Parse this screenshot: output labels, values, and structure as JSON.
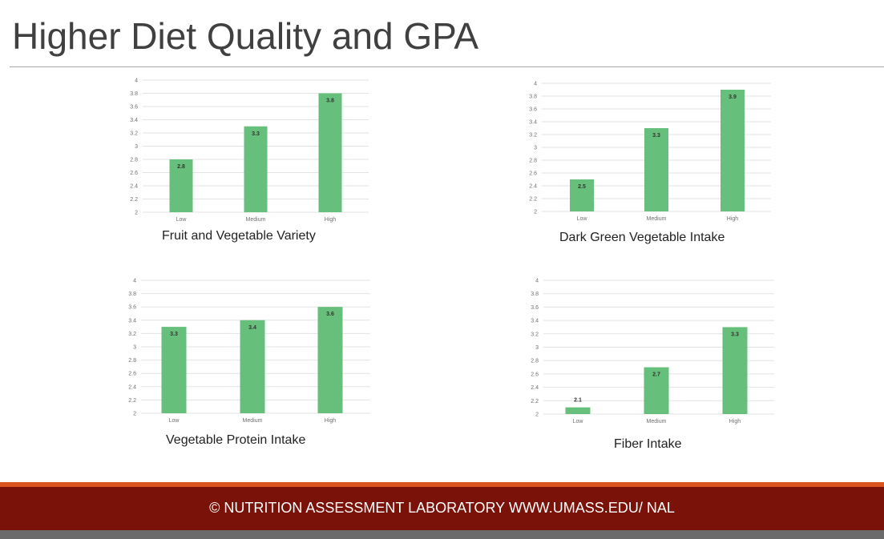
{
  "slide": {
    "title": "Higher Diet Quality and GPA",
    "footer": "© NUTRITION ASSESSMENT LABORATORY WWW.UMASS.EDU/ NAL"
  },
  "colors": {
    "bar": "#66bf7a",
    "grid": "#e3e3e3",
    "footer_band": "#7a1209",
    "footer_accent": "#d9541e"
  },
  "chart_data": [
    {
      "type": "bar",
      "title": "Fruit and Vegetable Variety",
      "categories": [
        "Low",
        "Medium",
        "High"
      ],
      "values": [
        2.8,
        3.3,
        3.8
      ],
      "value_labels": [
        "2.8",
        "3.3",
        "3.8"
      ],
      "yticks": [
        "2",
        "2.2",
        "2.4",
        "2.6",
        "2.8",
        "3",
        "3.2",
        "3.4",
        "3.6",
        "3.8",
        "4"
      ],
      "ylim": [
        2,
        4
      ],
      "grid": true
    },
    {
      "type": "bar",
      "title": "Dark Green Vegetable Intake",
      "categories": [
        "Low",
        "Medium",
        "High"
      ],
      "values": [
        2.5,
        3.3,
        3.9
      ],
      "value_labels": [
        "2.5",
        "3.3",
        "3.9"
      ],
      "yticks": [
        "2",
        "2.2",
        "2.4",
        "2.6",
        "2.8",
        "3",
        "3.2",
        "3.4",
        "3.6",
        "3.8",
        "4"
      ],
      "ylim": [
        2,
        4
      ],
      "grid": true
    },
    {
      "type": "bar",
      "title": "Vegetable Protein Intake",
      "categories": [
        "Low",
        "Medium",
        "High"
      ],
      "values": [
        3.3,
        3.4,
        3.6
      ],
      "value_labels": [
        "3.3",
        "3.4",
        "3.6"
      ],
      "yticks": [
        "2",
        "2.2",
        "2.4",
        "2.6",
        "2.8",
        "3",
        "3.2",
        "3.4",
        "3.6",
        "3.8",
        "4"
      ],
      "ylim": [
        2,
        4
      ],
      "grid": true
    },
    {
      "type": "bar",
      "title": "Fiber Intake",
      "categories": [
        "Low",
        "Medium",
        "High"
      ],
      "values": [
        2.1,
        2.7,
        3.3
      ],
      "value_labels": [
        "2.1",
        "2.7",
        "3.3"
      ],
      "yticks": [
        "2",
        "2.2",
        "2.4",
        "2.6",
        "2.8",
        "3",
        "3.2",
        "3.4",
        "3.6",
        "3.8",
        "4"
      ],
      "ylim": [
        2,
        4
      ],
      "grid": true
    }
  ]
}
